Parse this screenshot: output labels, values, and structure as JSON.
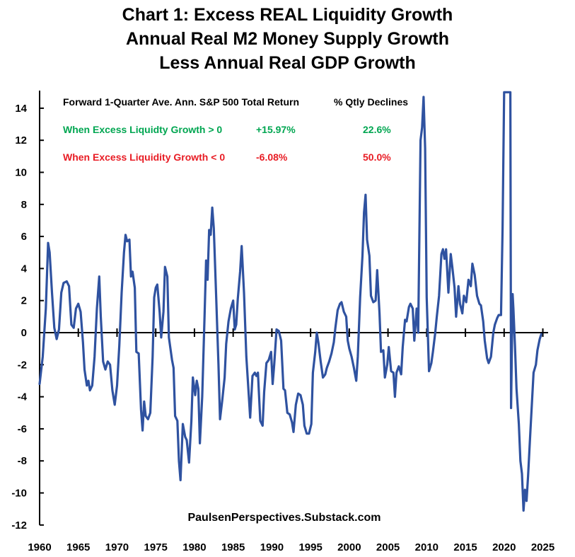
{
  "chart_data": {
    "type": "line",
    "title": [
      "Chart 1: Excess REAL Liquidity Growth",
      "Annual Real M2 Money Supply Growth",
      "Less Annual Real GDP Growth"
    ],
    "xlabel": "",
    "ylabel": "",
    "xlim": [
      1960,
      2025.5
    ],
    "ylim": [
      -12,
      15
    ],
    "x_ticks": [
      1960,
      1965,
      1970,
      1975,
      1980,
      1985,
      1990,
      1995,
      2000,
      2005,
      2010,
      2015,
      2020,
      2025
    ],
    "y_ticks": [
      -12,
      -10,
      -8,
      -6,
      -4,
      -2,
      0,
      2,
      4,
      6,
      8,
      10,
      12,
      14
    ],
    "grid": false,
    "legend": "none",
    "series": [
      {
        "name": "Excess Real Liquidity Growth",
        "color": "#2f52a0",
        "points": [
          [
            1960.0,
            -3.2
          ],
          [
            1960.4,
            -1.5
          ],
          [
            1960.8,
            1.5
          ],
          [
            1961.1,
            5.6
          ],
          [
            1961.3,
            5.0
          ],
          [
            1961.6,
            2.5
          ],
          [
            1961.9,
            0.3
          ],
          [
            1962.2,
            -0.4
          ],
          [
            1962.5,
            0.2
          ],
          [
            1962.8,
            2.5
          ],
          [
            1963.1,
            3.1
          ],
          [
            1963.5,
            3.2
          ],
          [
            1963.8,
            2.9
          ],
          [
            1964.1,
            0.5
          ],
          [
            1964.4,
            0.3
          ],
          [
            1964.7,
            1.5
          ],
          [
            1965.0,
            1.8
          ],
          [
            1965.3,
            1.3
          ],
          [
            1965.6,
            -0.6
          ],
          [
            1965.8,
            -2.3
          ],
          [
            1966.1,
            -3.3
          ],
          [
            1966.3,
            -3.0
          ],
          [
            1966.5,
            -3.6
          ],
          [
            1966.8,
            -3.3
          ],
          [
            1967.1,
            -1.5
          ],
          [
            1967.4,
            1.5
          ],
          [
            1967.7,
            3.5
          ],
          [
            1967.9,
            1.0
          ],
          [
            1968.2,
            -1.8
          ],
          [
            1968.5,
            -2.3
          ],
          [
            1968.8,
            -1.8
          ],
          [
            1969.1,
            -2.0
          ],
          [
            1969.4,
            -3.6
          ],
          [
            1969.7,
            -4.5
          ],
          [
            1970.0,
            -3.3
          ],
          [
            1970.3,
            -0.8
          ],
          [
            1970.6,
            2.5
          ],
          [
            1970.9,
            5.0
          ],
          [
            1971.1,
            6.1
          ],
          [
            1971.3,
            5.7
          ],
          [
            1971.6,
            5.8
          ],
          [
            1971.8,
            3.5
          ],
          [
            1972.0,
            3.8
          ],
          [
            1972.3,
            2.8
          ],
          [
            1972.5,
            -1.2
          ],
          [
            1972.8,
            -1.3
          ],
          [
            1973.1,
            -4.8
          ],
          [
            1973.3,
            -6.1
          ],
          [
            1973.5,
            -4.3
          ],
          [
            1973.7,
            -5.2
          ],
          [
            1974.0,
            -5.4
          ],
          [
            1974.3,
            -5.0
          ],
          [
            1974.6,
            -1.5
          ],
          [
            1974.8,
            2.2
          ],
          [
            1975.0,
            2.8
          ],
          [
            1975.2,
            3.0
          ],
          [
            1975.5,
            1.3
          ],
          [
            1975.7,
            -0.3
          ],
          [
            1976.0,
            1.3
          ],
          [
            1976.2,
            4.1
          ],
          [
            1976.5,
            3.5
          ],
          [
            1976.7,
            -0.3
          ],
          [
            1977.1,
            -1.7
          ],
          [
            1977.3,
            -2.2
          ],
          [
            1977.5,
            -5.2
          ],
          [
            1977.8,
            -5.5
          ],
          [
            1978.0,
            -8.0
          ],
          [
            1978.2,
            -9.2
          ],
          [
            1978.5,
            -5.7
          ],
          [
            1978.8,
            -6.5
          ],
          [
            1979.0,
            -6.7
          ],
          [
            1979.3,
            -8.1
          ],
          [
            1979.6,
            -5.5
          ],
          [
            1979.8,
            -2.8
          ],
          [
            1980.1,
            -3.9
          ],
          [
            1980.3,
            -3.0
          ],
          [
            1980.5,
            -3.5
          ],
          [
            1980.7,
            -6.9
          ],
          [
            1981.0,
            -4.0
          ],
          [
            1981.3,
            1.0
          ],
          [
            1981.5,
            4.5
          ],
          [
            1981.7,
            3.3
          ],
          [
            1981.9,
            6.4
          ],
          [
            1982.1,
            6.1
          ],
          [
            1982.3,
            7.8
          ],
          [
            1982.5,
            6.5
          ],
          [
            1982.8,
            2.3
          ],
          [
            1983.1,
            -2.0
          ],
          [
            1983.3,
            -5.4
          ],
          [
            1983.6,
            -4.2
          ],
          [
            1983.9,
            -2.8
          ],
          [
            1984.1,
            -0.7
          ],
          [
            1984.4,
            0.7
          ],
          [
            1984.7,
            1.5
          ],
          [
            1985.0,
            2.0
          ],
          [
            1985.2,
            0.2
          ],
          [
            1985.4,
            0.5
          ],
          [
            1985.6,
            2.1
          ],
          [
            1985.9,
            3.8
          ],
          [
            1986.1,
            5.4
          ],
          [
            1986.4,
            2.5
          ],
          [
            1986.7,
            -1.5
          ],
          [
            1987.0,
            -3.8
          ],
          [
            1987.2,
            -5.3
          ],
          [
            1987.5,
            -2.7
          ],
          [
            1987.8,
            -2.5
          ],
          [
            1988.0,
            -2.7
          ],
          [
            1988.2,
            -2.5
          ],
          [
            1988.5,
            -5.5
          ],
          [
            1988.8,
            -5.8
          ],
          [
            1989.0,
            -3.7
          ],
          [
            1989.3,
            -1.9
          ],
          [
            1989.6,
            -1.7
          ],
          [
            1989.9,
            -1.2
          ],
          [
            1990.1,
            -3.2
          ],
          [
            1990.3,
            -2.0
          ],
          [
            1990.6,
            0.2
          ],
          [
            1990.9,
            0.1
          ],
          [
            1991.2,
            -0.5
          ],
          [
            1991.5,
            -3.5
          ],
          [
            1991.7,
            -3.6
          ],
          [
            1992.0,
            -5.0
          ],
          [
            1992.3,
            -5.1
          ],
          [
            1992.6,
            -5.6
          ],
          [
            1992.8,
            -6.2
          ],
          [
            1993.1,
            -4.5
          ],
          [
            1993.4,
            -3.8
          ],
          [
            1993.7,
            -3.9
          ],
          [
            1994.0,
            -4.5
          ],
          [
            1994.2,
            -5.8
          ],
          [
            1994.5,
            -6.3
          ],
          [
            1994.8,
            -6.3
          ],
          [
            1995.1,
            -5.7
          ],
          [
            1995.3,
            -2.5
          ],
          [
            1995.6,
            -1.2
          ],
          [
            1995.8,
            0.0
          ],
          [
            1996.0,
            -0.6
          ],
          [
            1996.3,
            -1.8
          ],
          [
            1996.6,
            -2.8
          ],
          [
            1996.9,
            -2.6
          ],
          [
            1997.1,
            -2.2
          ],
          [
            1997.4,
            -1.8
          ],
          [
            1997.7,
            -1.3
          ],
          [
            1998.0,
            -0.6
          ],
          [
            1998.2,
            0.3
          ],
          [
            1998.5,
            1.4
          ],
          [
            1998.8,
            1.8
          ],
          [
            1999.0,
            1.9
          ],
          [
            1999.3,
            1.3
          ],
          [
            1999.6,
            1.0
          ],
          [
            1999.8,
            -0.5
          ],
          [
            2000.0,
            -1.0
          ],
          [
            2000.3,
            -1.5
          ],
          [
            2000.6,
            -2.2
          ],
          [
            2000.9,
            -3.0
          ],
          [
            2001.1,
            -1.5
          ],
          [
            2001.4,
            2.2
          ],
          [
            2001.7,
            4.8
          ],
          [
            2001.9,
            7.5
          ],
          [
            2002.1,
            8.6
          ],
          [
            2002.3,
            5.8
          ],
          [
            2002.6,
            4.8
          ],
          [
            2002.8,
            2.3
          ],
          [
            2003.1,
            1.9
          ],
          [
            2003.4,
            2.0
          ],
          [
            2003.6,
            3.9
          ],
          [
            2003.9,
            1.2
          ],
          [
            2004.1,
            -1.2
          ],
          [
            2004.4,
            -1.1
          ],
          [
            2004.6,
            -2.8
          ],
          [
            2004.9,
            -2.0
          ],
          [
            2005.1,
            -0.9
          ],
          [
            2005.4,
            -2.4
          ],
          [
            2005.7,
            -2.5
          ],
          [
            2005.9,
            -4.0
          ],
          [
            2006.1,
            -2.5
          ],
          [
            2006.4,
            -2.1
          ],
          [
            2006.7,
            -2.6
          ],
          [
            2006.9,
            -0.9
          ],
          [
            2007.2,
            0.8
          ],
          [
            2007.4,
            0.7
          ],
          [
            2007.7,
            1.6
          ],
          [
            2007.9,
            1.8
          ],
          [
            2008.2,
            1.5
          ],
          [
            2008.4,
            -0.5
          ],
          [
            2008.7,
            1.5
          ],
          [
            2008.9,
            0.0
          ],
          [
            2009.2,
            12.0
          ],
          [
            2009.4,
            12.8
          ],
          [
            2009.6,
            14.7
          ],
          [
            2009.8,
            11.5
          ],
          [
            2010.0,
            2.2
          ],
          [
            2010.3,
            -2.4
          ],
          [
            2010.6,
            -1.9
          ],
          [
            2010.8,
            -1.2
          ],
          [
            2011.1,
            0.0
          ],
          [
            2011.3,
            1.0
          ],
          [
            2011.6,
            2.3
          ],
          [
            2011.9,
            4.9
          ],
          [
            2012.1,
            5.2
          ],
          [
            2012.3,
            4.6
          ],
          [
            2012.5,
            5.2
          ],
          [
            2012.8,
            2.5
          ],
          [
            2013.1,
            4.9
          ],
          [
            2013.3,
            4.1
          ],
          [
            2013.6,
            2.8
          ],
          [
            2013.8,
            1.0
          ],
          [
            2014.1,
            2.9
          ],
          [
            2014.3,
            1.8
          ],
          [
            2014.6,
            1.2
          ],
          [
            2014.8,
            2.3
          ],
          [
            2015.1,
            1.9
          ],
          [
            2015.4,
            3.3
          ],
          [
            2015.7,
            2.9
          ],
          [
            2015.9,
            4.3
          ],
          [
            2016.2,
            3.6
          ],
          [
            2016.5,
            2.3
          ],
          [
            2016.8,
            1.8
          ],
          [
            2017.0,
            1.7
          ],
          [
            2017.3,
            0.7
          ],
          [
            2017.5,
            -0.5
          ],
          [
            2017.8,
            -1.6
          ],
          [
            2018.0,
            -1.9
          ],
          [
            2018.3,
            -1.5
          ],
          [
            2018.6,
            0.0
          ],
          [
            2018.8,
            0.5
          ],
          [
            2019.1,
            0.9
          ],
          [
            2019.3,
            1.1
          ],
          [
            2019.6,
            1.1
          ],
          [
            2019.8,
            6.5
          ],
          [
            2020.0,
            15.0
          ],
          [
            2020.8,
            15.0
          ],
          [
            2020.9,
            -4.7
          ],
          [
            2021.1,
            2.4
          ],
          [
            2021.2,
            1.5
          ],
          [
            2021.4,
            -0.8
          ],
          [
            2021.6,
            -3.5
          ],
          [
            2021.9,
            -5.7
          ],
          [
            2022.1,
            -8.0
          ],
          [
            2022.3,
            -8.8
          ],
          [
            2022.5,
            -11.1
          ],
          [
            2022.7,
            -9.8
          ],
          [
            2022.9,
            -10.5
          ],
          [
            2023.1,
            -8.9
          ],
          [
            2023.4,
            -6.1
          ],
          [
            2023.6,
            -4.3
          ],
          [
            2023.8,
            -2.5
          ],
          [
            2024.1,
            -2.0
          ],
          [
            2024.3,
            -1.1
          ],
          [
            2024.6,
            -0.4
          ],
          [
            2024.8,
            -0.1
          ]
        ]
      }
    ],
    "annotations": {
      "header_left": "Forward 1-Quarter Ave. Ann. S&P 500 Total Return",
      "header_right": "% Qtly Declines",
      "rows": [
        {
          "label": "When Excess Liquidty Growth > 0",
          "ret": "+15.97%",
          "dec": "22.6%",
          "color": "#00a651"
        },
        {
          "label": "When Excess Liquidity Growth < 0",
          "ret": "-6.08%",
          "dec": "50.0%",
          "color": "#e81c24"
        }
      ],
      "credit": "PaulsenPerspectives.Substack.com"
    }
  }
}
